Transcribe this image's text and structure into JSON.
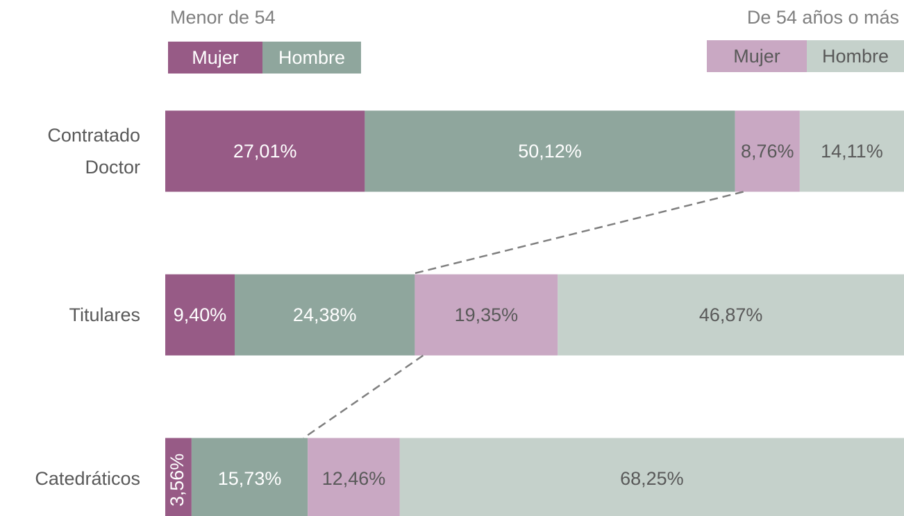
{
  "chart_data": {
    "type": "stacked-barh",
    "categories": [
      "Contratado Doctor",
      "Titulares",
      "Catedráticos"
    ],
    "xlim": [
      0,
      100
    ],
    "groups": [
      {
        "name": "Menor de 54",
        "series": [
          {
            "name": "Mujer",
            "color": "#975b86",
            "label_color": "#ffffff",
            "values": [
              27.01,
              9.4,
              3.56
            ],
            "value_labels": [
              "27,01%",
              "9,40%",
              "3,56%"
            ]
          },
          {
            "name": "Hombre",
            "color": "#8fa69d",
            "label_color": "#ffffff",
            "values": [
              50.12,
              24.38,
              15.73
            ],
            "value_labels": [
              "50,12%",
              "24,38%",
              "15,73%"
            ]
          }
        ]
      },
      {
        "name": "De 54 años o más",
        "series": [
          {
            "name": "Mujer",
            "color": "#c9a8c3",
            "label_color": "#595959",
            "values": [
              8.76,
              19.35,
              12.46
            ],
            "value_labels": [
              "8,76%",
              "19,35%",
              "12,46%"
            ]
          },
          {
            "name": "Hombre",
            "color": "#c5d1cb",
            "label_color": "#595959",
            "values": [
              14.11,
              46.87,
              68.25
            ],
            "value_labels": [
              "14,11%",
              "46,87%",
              "68,25%"
            ]
          }
        ]
      }
    ]
  }
}
